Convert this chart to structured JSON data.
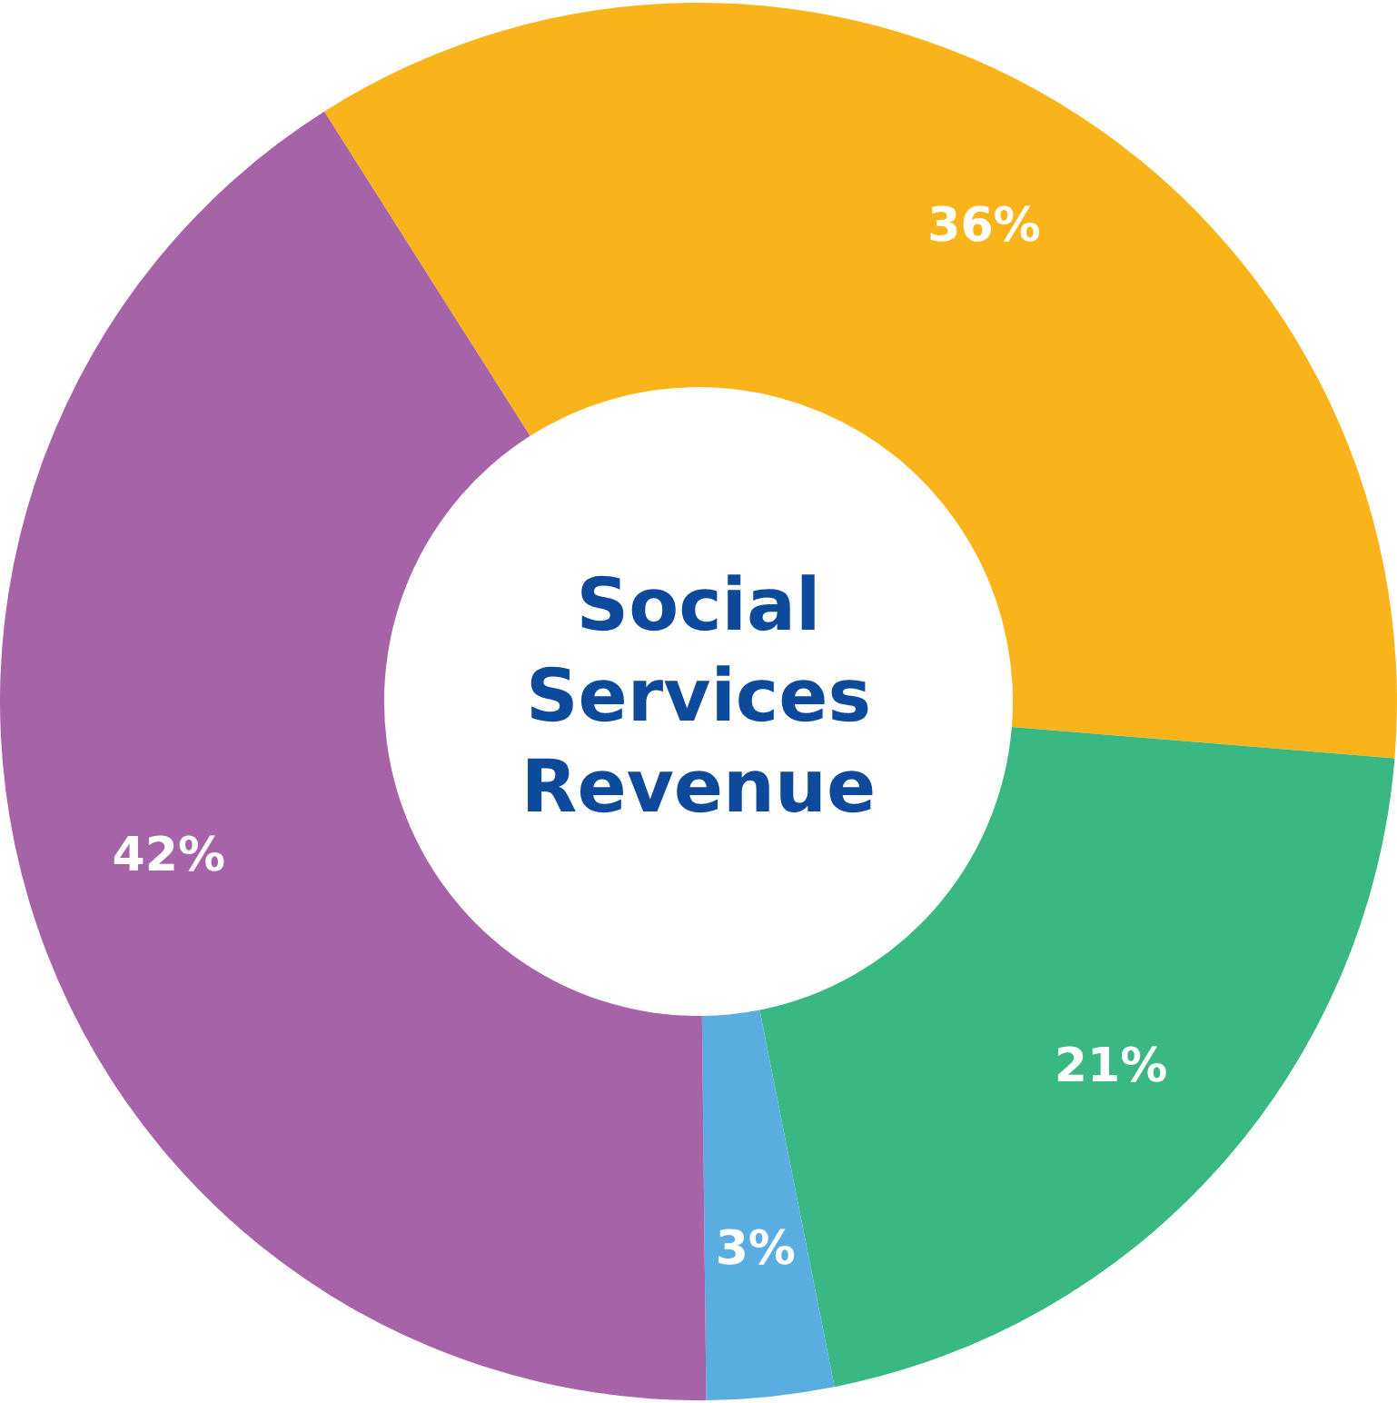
{
  "chart_data": {
    "type": "donut",
    "title": "Social Services Revenue",
    "categories": [
      null,
      null,
      null,
      null
    ],
    "values": [
      36,
      21,
      3,
      42
    ],
    "colors": [
      "#f8b41a",
      "#3ab883",
      "#5aade0",
      "#a763a7"
    ],
    "value_labels": [
      "36%",
      "21%",
      "3%",
      "42%"
    ],
    "legend": false
  }
}
